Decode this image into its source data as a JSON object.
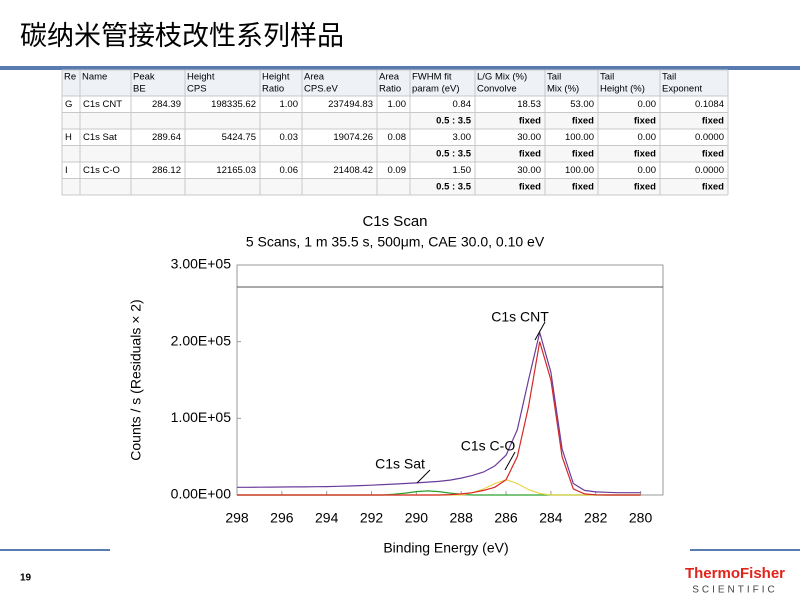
{
  "title": "碳纳米管接枝改性系列样品",
  "table": {
    "header": [
      [
        "Re"
      ],
      [
        "Name"
      ],
      [
        "Peak",
        "BE"
      ],
      [
        "Height",
        "CPS"
      ],
      [
        "Height",
        "Ratio"
      ],
      [
        "Area",
        "CPS.eV"
      ],
      [
        "Area",
        "Ratio"
      ],
      [
        "FWHM fit",
        "param (eV)"
      ],
      [
        "L/G Mix (%)",
        "Convolve"
      ],
      [
        "Tail",
        "Mix (%)"
      ],
      [
        "Tail",
        "Height (%)"
      ],
      [
        "Tail",
        "Exponent"
      ]
    ],
    "rows": [
      [
        "G",
        "C1s CNT",
        "284.39",
        "198335.62",
        "1.00",
        "237494.83",
        "1.00",
        "0.84",
        "18.53",
        "53.00",
        "0.00",
        "0.1084"
      ],
      [
        null,
        null,
        null,
        null,
        null,
        null,
        null,
        "0.5 : 3.5",
        "fixed",
        "fixed",
        "fixed",
        "fixed"
      ],
      [
        "H",
        "C1s Sat",
        "289.64",
        "5424.75",
        "0.03",
        "19074.26",
        "0.08",
        "3.00",
        "30.00",
        "100.00",
        "0.00",
        "0.0000"
      ],
      [
        null,
        null,
        null,
        null,
        null,
        null,
        null,
        "0.5 : 3.5",
        "fixed",
        "fixed",
        "fixed",
        "fixed"
      ],
      [
        "I",
        "C1s C-O",
        "286.12",
        "12165.03",
        "0.06",
        "21408.42",
        "0.09",
        "1.50",
        "30.00",
        "100.00",
        "0.00",
        "0.0000"
      ],
      [
        null,
        null,
        null,
        null,
        null,
        null,
        null,
        "0.5 : 3.5",
        "fixed",
        "fixed",
        "fixed",
        "fixed"
      ]
    ]
  },
  "chart_data": {
    "type": "line",
    "title": "C1s Scan",
    "subtitle": "5 Scans,  1 m 35.5 s,  500μm,  CAE 30.0,  0.10 eV",
    "x_label": "Binding Energy (eV)",
    "y_label": "Counts / s  (Residuals × 2)",
    "xlim": [
      298,
      279
    ],
    "xticks": [
      298,
      296,
      294,
      292,
      290,
      288,
      286,
      284,
      282,
      280
    ],
    "ylim": [
      0,
      300000
    ],
    "yticks": [
      {
        "value": 0,
        "label": "0.00E+00"
      },
      {
        "value": 100000,
        "label": "1.00E+05"
      },
      {
        "value": 200000,
        "label": "2.00E+05"
      },
      {
        "value": 300000,
        "label": "3.00E+05"
      }
    ],
    "x": [
      298,
      297.5,
      297,
      296.5,
      296,
      295.5,
      295,
      294.5,
      294,
      293.5,
      293,
      292.5,
      292,
      291.5,
      291,
      290.5,
      290,
      289.5,
      289,
      288.5,
      288,
      287.5,
      287,
      286.5,
      286,
      285.5,
      285,
      284.5,
      284,
      283.5,
      283,
      282.5,
      282,
      281.5,
      281,
      280.5,
      280
    ],
    "series": [
      {
        "color": "#2ca02c",
        "values": [
          0,
          0,
          0,
          0,
          0,
          0,
          0,
          0,
          0,
          0,
          0,
          0,
          0,
          0,
          1000,
          2500,
          4500,
          5400,
          4500,
          2500,
          1000,
          0,
          0,
          0,
          0,
          0,
          0,
          0,
          0,
          0,
          0,
          0,
          0,
          0,
          0,
          0,
          0
        ]
      },
      {
        "color": "#e8d44d",
        "values": [
          0,
          0,
          0,
          0,
          0,
          0,
          0,
          0,
          0,
          0,
          0,
          0,
          0,
          0,
          0,
          0,
          0,
          0,
          0,
          0,
          0,
          3000,
          8000,
          15000,
          20000,
          15000,
          7000,
          2000,
          0,
          0,
          0,
          0,
          0,
          0,
          0,
          0,
          0
        ]
      },
      {
        "color": "#d62728",
        "values": [
          0,
          0,
          0,
          0,
          0,
          0,
          0,
          0,
          0,
          0,
          0,
          0,
          0,
          0,
          0,
          0,
          0,
          0,
          0,
          500,
          1500,
          3000,
          6000,
          10000,
          20000,
          50000,
          115000,
          200000,
          150000,
          50000,
          8000,
          1500,
          300,
          0,
          0,
          0,
          0
        ]
      },
      {
        "color": "#6a3d9a",
        "values": [
          10000,
          10000,
          10200,
          10300,
          10400,
          10500,
          10600,
          10800,
          11000,
          11300,
          11700,
          12200,
          12800,
          13500,
          14200,
          15000,
          15800,
          16800,
          17800,
          19500,
          22000,
          25500,
          30000,
          38000,
          52000,
          85000,
          150000,
          212000,
          160000,
          60000,
          15000,
          6000,
          4000,
          3500,
          3000,
          3000,
          3000
        ]
      }
    ],
    "annotations": [
      "C1s CNT",
      "C1s C-O",
      "C1s Sat"
    ]
  },
  "page_number": "19",
  "logo": {
    "brand": "ThermoFisher",
    "tagline": "SCIENTIFIC"
  }
}
